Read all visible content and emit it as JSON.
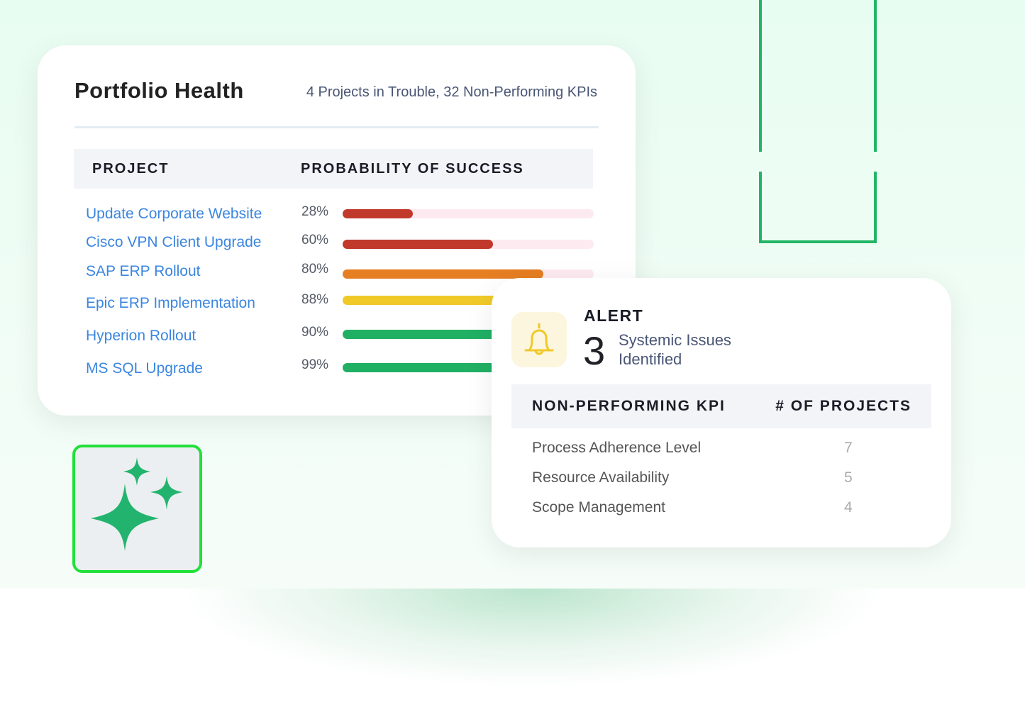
{
  "portfolio": {
    "title": "Portfolio Health",
    "summary": "4 Projects in Trouble, 32 Non-Performing KPIs",
    "headers": {
      "project": "PROJECT",
      "probability": "PROBABILITY OF SUCCESS"
    },
    "projects": [
      {
        "name": "Update Corporate Website",
        "pct": "28%",
        "value": 28,
        "color": "#c0392b"
      },
      {
        "name": "Cisco VPN Client Upgrade",
        "pct": "60%",
        "value": 60,
        "color": "#c0392b"
      },
      {
        "name": "SAP ERP Rollout",
        "pct": "80%",
        "value": 80,
        "color": "#e67e22"
      },
      {
        "name": "Epic ERP Implementation",
        "pct": "88%",
        "value": 88,
        "color": "#f0c929"
      },
      {
        "name": "Hyperion Rollout",
        "pct": "90%",
        "value": 90,
        "color": "#20b064"
      },
      {
        "name": "MS SQL Upgrade",
        "pct": "99%",
        "value": 99,
        "color": "#20b064"
      }
    ]
  },
  "alert": {
    "label": "ALERT",
    "count": "3",
    "description": "Systemic Issues Identified",
    "icon": "bell-icon",
    "headers": {
      "kpi": "NON-PERFORMING KPI",
      "projects": "# OF PROJECTS"
    },
    "kpis": [
      {
        "name": "Process Adherence Level",
        "count": "7"
      },
      {
        "name": "Resource Availability",
        "count": "5"
      },
      {
        "name": "Scope Management",
        "count": "4"
      }
    ]
  },
  "sparkle": {
    "icon": "sparkles-icon",
    "color": "#22b46e"
  }
}
